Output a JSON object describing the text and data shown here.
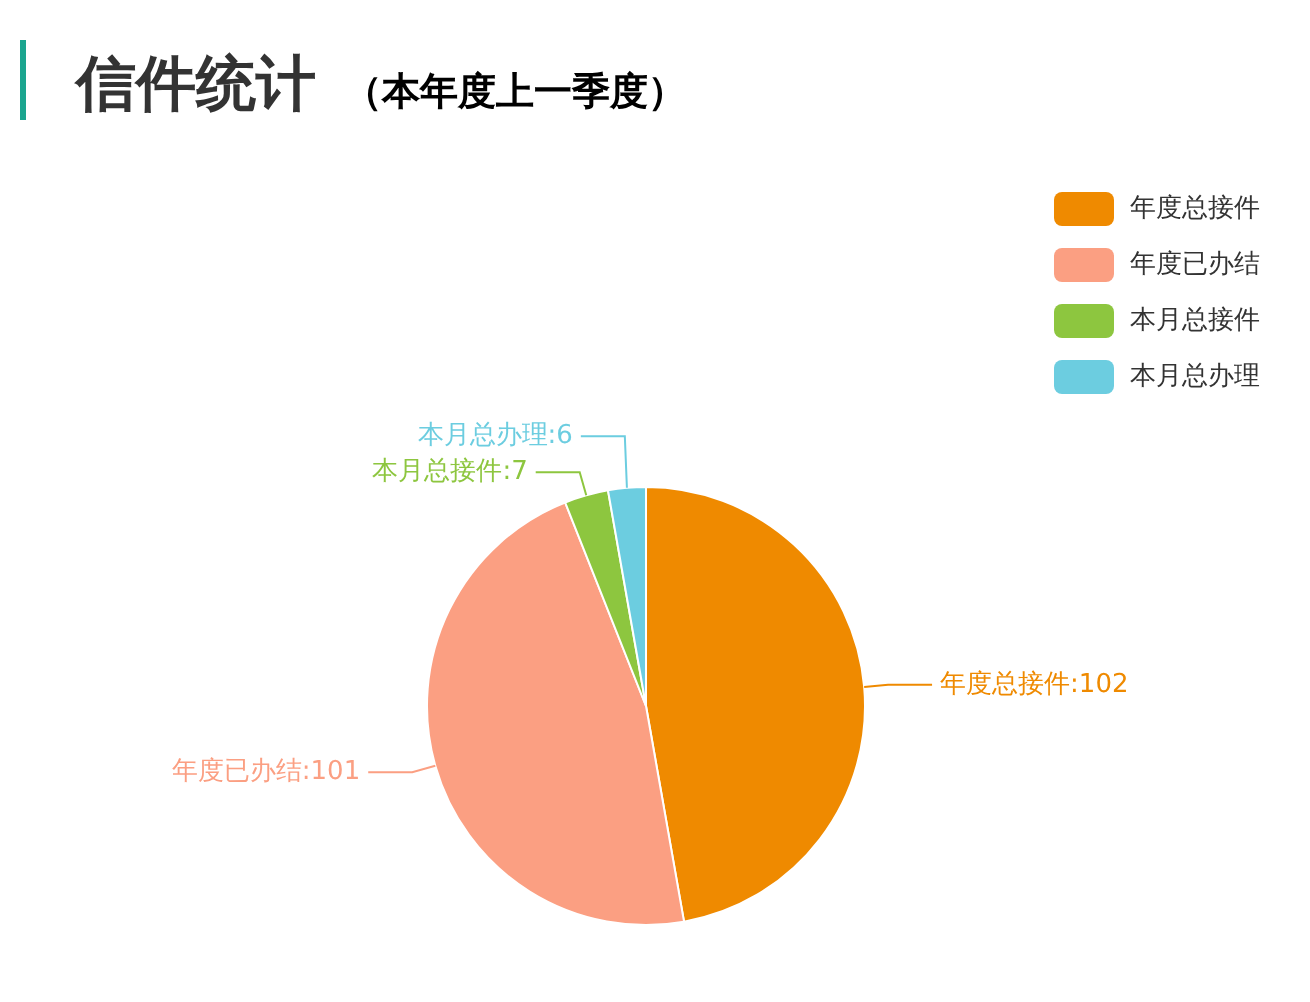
{
  "chart_data": {
    "type": "pie",
    "title": "信件统计",
    "subtitle": "（本年度上一季度）",
    "categories": [
      "年度总接件",
      "年度已办结",
      "本月总接件",
      "本月总办理"
    ],
    "values": [
      102,
      101,
      7,
      6
    ],
    "colors": [
      "#ef8a00",
      "#fb9f82",
      "#8dc63f",
      "#6ccde0"
    ],
    "value_labels": [
      "年度总接件:102",
      "年度已办结:101",
      "本月总接件:7",
      "本月总办理:6"
    ],
    "legend": "top right"
  }
}
